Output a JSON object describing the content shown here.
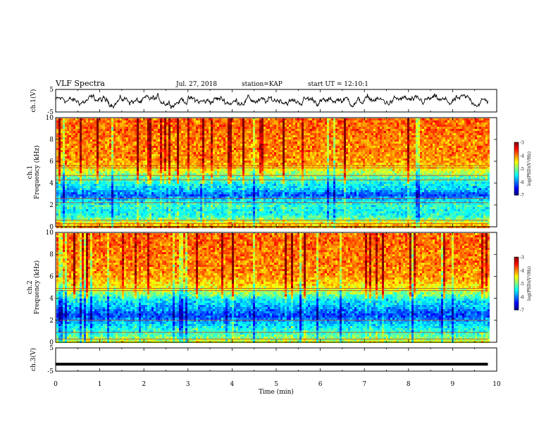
{
  "header": {
    "title": "VLF Spectra",
    "date": "Jul. 27, 2018",
    "station": "station=KAP",
    "start": "start UT = 12:10:1"
  },
  "chart_data": [
    {
      "type": "line",
      "panel": "ch1-waveform",
      "ylabel": "ch.1(V)",
      "ylim": [
        -5,
        5
      ],
      "yticks": [
        "5",
        "-5"
      ],
      "xlim": [
        0,
        10
      ],
      "series_note_values": "black noisy trace fluctuating roughly between -2.5 and 2.5 V over 0–9.8 min"
    },
    {
      "type": "heatmap",
      "panel": "ch1-spectrogram",
      "ylabel": "ch.1\nFrequency (kHz)",
      "ylim": [
        0,
        10
      ],
      "yticks": [
        "0",
        "2",
        "4",
        "6",
        "8",
        "10"
      ],
      "xlim": [
        0,
        10
      ],
      "data_extent_min": 9.8,
      "color_scale": {
        "label": "log(PSD)(V²/Hz)",
        "min": -7,
        "max": -3,
        "ticks": [
          "-3",
          "-4",
          "-5",
          "-6",
          "-7"
        ]
      },
      "freq_profile": [
        {
          "f": 0.0,
          "v": -4.0
        },
        {
          "f": 0.5,
          "v": -4.6
        },
        {
          "f": 1.0,
          "v": -5.3
        },
        {
          "f": 1.5,
          "v": -5.5
        },
        {
          "f": 2.0,
          "v": -5.3
        },
        {
          "f": 2.5,
          "v": -5.6
        },
        {
          "f": 3.0,
          "v": -6.2
        },
        {
          "f": 3.5,
          "v": -5.7
        },
        {
          "f": 4.0,
          "v": -5.5
        },
        {
          "f": 4.5,
          "v": -5.2
        },
        {
          "f": 5.0,
          "v": -4.8
        },
        {
          "f": 5.5,
          "v": -4.4
        },
        {
          "f": 6.0,
          "v": -4.1
        },
        {
          "f": 7.0,
          "v": -4.0
        },
        {
          "f": 8.0,
          "v": -4.0
        },
        {
          "f": 9.0,
          "v": -3.9
        },
        {
          "f": 10.0,
          "v": -3.9
        }
      ],
      "horizontal_lines_khz": [
        0.3,
        0.6,
        2.2,
        2.6,
        4.3,
        4.7,
        5.4,
        5.6
      ]
    },
    {
      "type": "heatmap",
      "panel": "ch2-spectrogram",
      "ylabel": "ch.2\nFrequency (kHz)",
      "ylim": [
        0,
        10
      ],
      "yticks": [
        "0",
        "2",
        "4",
        "6",
        "8",
        "10"
      ],
      "xlim": [
        0,
        10
      ],
      "data_extent_min": 9.8,
      "color_scale": {
        "label": "log(PSD)(V²/Hz)",
        "min": -7,
        "max": -3,
        "ticks": [
          "-3",
          "-4",
          "-5",
          "-6",
          "-7"
        ]
      },
      "freq_profile": [
        {
          "f": 0.0,
          "v": -4.5
        },
        {
          "f": 0.5,
          "v": -5.0
        },
        {
          "f": 1.0,
          "v": -5.3
        },
        {
          "f": 1.5,
          "v": -5.5
        },
        {
          "f": 2.0,
          "v": -5.8
        },
        {
          "f": 2.5,
          "v": -6.3
        },
        {
          "f": 3.0,
          "v": -6.0
        },
        {
          "f": 3.5,
          "v": -5.7
        },
        {
          "f": 4.0,
          "v": -5.5
        },
        {
          "f": 4.5,
          "v": -5.0
        },
        {
          "f": 5.0,
          "v": -4.6
        },
        {
          "f": 5.5,
          "v": -4.3
        },
        {
          "f": 6.0,
          "v": -4.1
        },
        {
          "f": 7.0,
          "v": -4.0
        },
        {
          "f": 8.0,
          "v": -4.0
        },
        {
          "f": 9.0,
          "v": -3.9
        },
        {
          "f": 10.0,
          "v": -3.9
        }
      ],
      "horizontal_lines_khz": [
        0.3,
        0.9,
        2.0,
        4.7,
        4.9
      ]
    },
    {
      "type": "line",
      "panel": "ch3-waveform",
      "ylabel": "ch.3(V)",
      "ylim": [
        -5,
        5
      ],
      "yticks": [
        "5",
        "-5"
      ],
      "xlim": [
        0,
        10
      ],
      "xlabel": "Time (min)",
      "xticks": [
        "0",
        "1",
        "2",
        "3",
        "4",
        "5",
        "6",
        "7",
        "8",
        "9",
        "10"
      ],
      "constant_value": -2.0
    }
  ]
}
